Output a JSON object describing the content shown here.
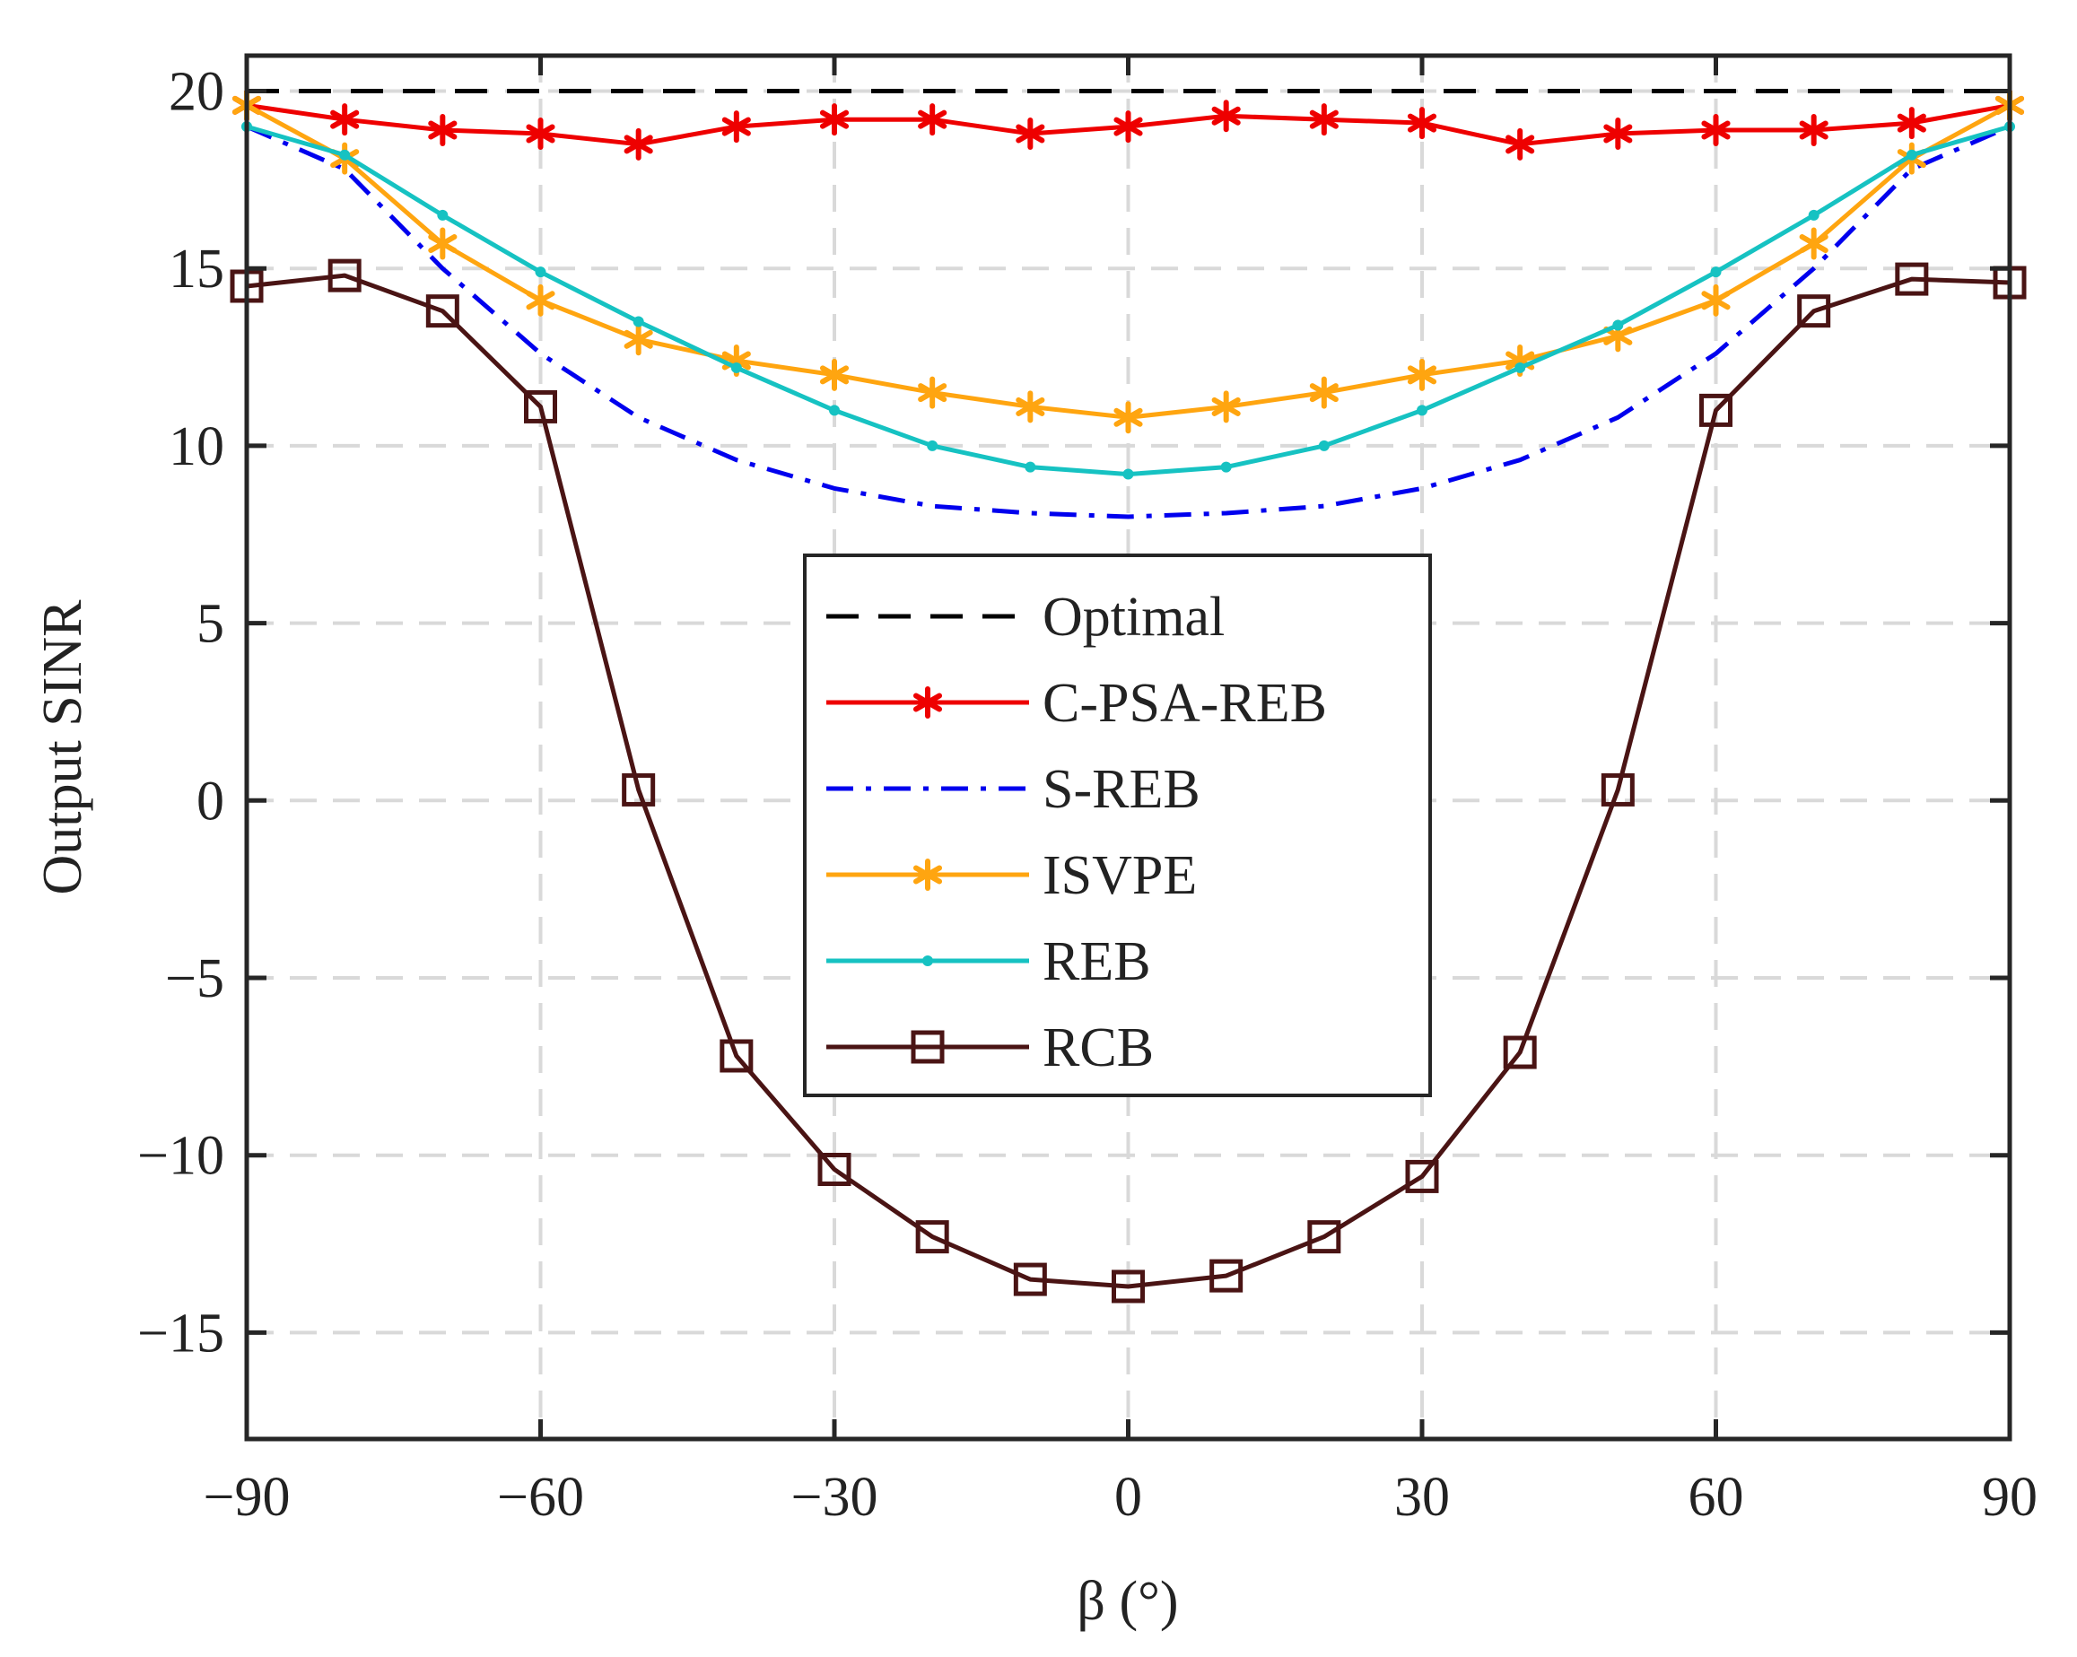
{
  "chart_data": {
    "type": "line",
    "xlabel": "β (°)",
    "ylabel": "Output SINR",
    "xlim": [
      -90,
      90
    ],
    "ylim": [
      -18,
      21
    ],
    "xticks": [
      -90,
      -60,
      -30,
      0,
      30,
      60,
      90
    ],
    "xtick_labels": [
      "−90",
      "−60",
      "−30",
      "0",
      "30",
      "60",
      "90"
    ],
    "yticks": [
      -15,
      -10,
      -5,
      0,
      5,
      10,
      15,
      20
    ],
    "ytick_labels": [
      "−15",
      "−10",
      "−5",
      "0",
      "5",
      "10",
      "15",
      "20"
    ],
    "grid": true,
    "legend_position": "center",
    "x": [
      -90,
      -80,
      -70,
      -60,
      -50,
      -40,
      -30,
      -20,
      -10,
      0,
      10,
      20,
      30,
      40,
      50,
      60,
      70,
      80,
      90
    ],
    "series": [
      {
        "name": "Optimal",
        "color": "#000000",
        "dash": "dashed",
        "marker": "none",
        "values": [
          20,
          20,
          20,
          20,
          20,
          20,
          20,
          20,
          20,
          20,
          20,
          20,
          20,
          20,
          20,
          20,
          20,
          20,
          20
        ]
      },
      {
        "name": "C-PSA-REB",
        "color": "#ee0000",
        "dash": "solid",
        "marker": "asterisk",
        "values": [
          19.6,
          19.2,
          18.9,
          18.8,
          18.5,
          19.0,
          19.2,
          19.2,
          18.8,
          19.0,
          19.3,
          19.2,
          19.1,
          18.5,
          18.8,
          18.9,
          18.9,
          19.1,
          19.6
        ]
      },
      {
        "name": "S-REB",
        "color": "#0000ee",
        "dash": "dashdot",
        "marker": "none",
        "values": [
          19.0,
          17.8,
          15.0,
          12.6,
          10.8,
          9.6,
          8.8,
          8.3,
          8.1,
          8.0,
          8.1,
          8.3,
          8.8,
          9.6,
          10.8,
          12.6,
          15.0,
          17.8,
          19.0
        ]
      },
      {
        "name": "ISVPE",
        "color": "#ffa510",
        "dash": "solid",
        "marker": "asterisk",
        "values": [
          19.6,
          18.1,
          15.7,
          14.1,
          13.0,
          12.4,
          12.0,
          11.5,
          11.1,
          10.8,
          11.1,
          11.5,
          12.0,
          12.4,
          13.1,
          14.1,
          15.7,
          18.1,
          19.6
        ]
      },
      {
        "name": "REB",
        "color": "#16c2c2",
        "dash": "solid",
        "marker": "dot",
        "values": [
          19.0,
          18.2,
          16.5,
          14.9,
          13.5,
          12.2,
          11.0,
          10.0,
          9.4,
          9.2,
          9.4,
          10.0,
          11.0,
          12.2,
          13.4,
          14.9,
          16.5,
          18.2,
          19.0
        ]
      },
      {
        "name": "RCB",
        "color": "#4a1414",
        "dash": "solid",
        "marker": "square",
        "values": [
          14.5,
          14.8,
          13.8,
          11.1,
          0.3,
          -7.2,
          -10.4,
          -12.3,
          -13.5,
          -13.7,
          -13.4,
          -12.3,
          -10.6,
          -7.1,
          0.3,
          11.0,
          13.8,
          14.7,
          14.6
        ]
      }
    ]
  }
}
